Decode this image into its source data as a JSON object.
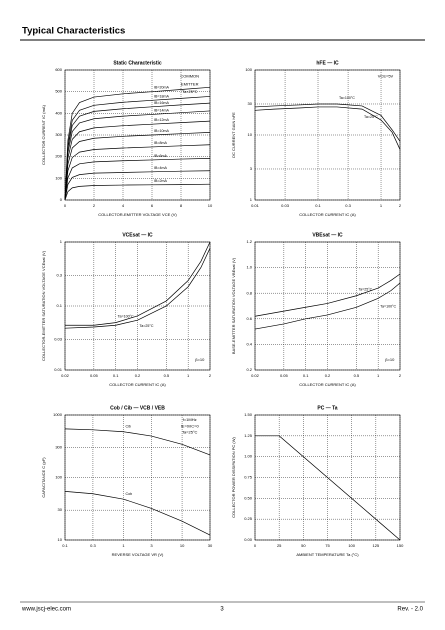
{
  "header": {
    "title": "Typical Characteristics"
  },
  "chart_data": [
    {
      "type": "line",
      "title": "Static Characteristic",
      "xlabel": "COLLECTOR-EMITTER VOLTAGE  VCE  (V)",
      "ylabel": "COLLECTOR CURRENT  IC  (mA)",
      "annotations": [
        "COMMON",
        "EMITTER",
        "Ta=25°C"
      ],
      "x": [
        0,
        0.2,
        0.5,
        1,
        2,
        4,
        6,
        8,
        10
      ],
      "xlim": [
        0,
        10
      ],
      "xticks": [
        0,
        2,
        4,
        6,
        8,
        10
      ],
      "ylim": [
        0,
        600
      ],
      "yticks": [
        0,
        100,
        200,
        300,
        400,
        500,
        600
      ],
      "grid": true,
      "series": [
        {
          "name": "IB=20mA",
          "color": "#000000",
          "values": [
            0,
            275,
            400,
            450,
            475,
            490,
            500,
            510,
            520
          ]
        },
        {
          "name": "IB=18mA",
          "color": "#000000",
          "values": [
            0,
            253,
            368,
            414,
            437,
            451,
            460,
            469,
            478
          ]
        },
        {
          "name": "IB=16mA",
          "color": "#000000",
          "values": [
            0,
            237,
            344,
            387,
            409,
            421,
            430,
            439,
            447
          ]
        },
        {
          "name": "IB=14mA",
          "color": "#000000",
          "values": [
            0,
            217,
            316,
            356,
            375,
            387,
            395,
            403,
            411
          ]
        },
        {
          "name": "IB=12mA",
          "color": "#000000",
          "values": [
            0,
            193,
            280,
            315,
            333,
            343,
            350,
            357,
            364
          ]
        },
        {
          "name": "IB=10mA",
          "color": "#000000",
          "values": [
            0,
            165,
            240,
            270,
            285,
            294,
            300,
            306,
            312
          ]
        },
        {
          "name": "IB=8mA",
          "color": "#000000",
          "values": [
            0,
            135,
            196,
            221,
            233,
            240,
            245,
            250,
            255
          ]
        },
        {
          "name": "IB=6mA",
          "color": "#000000",
          "values": [
            0,
            102,
            148,
            167,
            176,
            181,
            185,
            189,
            192
          ]
        },
        {
          "name": "IB=4mA",
          "color": "#000000",
          "values": [
            0,
            72,
            104,
            117,
            124,
            127,
            130,
            133,
            135
          ]
        },
        {
          "name": "IB=2mA",
          "color": "#000000",
          "values": [
            0,
            39,
            56,
            63,
            67,
            69,
            70,
            71,
            73
          ]
        }
      ]
    },
    {
      "type": "line",
      "title": "hFE — IC",
      "xlabel": "COLLECTOR CURRENT  IC  (A)",
      "ylabel": "DC CURRENT GAIN  hFE",
      "annotations": [
        "VCE=5V"
      ],
      "xscale": "log",
      "yscale": "log",
      "x": [
        0.01,
        0.02,
        0.05,
        0.1,
        0.2,
        0.5,
        1,
        1.5,
        2
      ],
      "xlim": [
        0.01,
        2
      ],
      "xticks": [
        0.01,
        0.03,
        0.1,
        0.3,
        1,
        2
      ],
      "ylim": [
        1,
        100
      ],
      "yticks": [
        1,
        3,
        10,
        30,
        100
      ],
      "grid": true,
      "series": [
        {
          "name": "Ta=100°C",
          "color": "#000000",
          "values": [
            27,
            28,
            29,
            30,
            30,
            28,
            20,
            12,
            8
          ]
        },
        {
          "name": "Ta=25°C",
          "color": "#000000",
          "values": [
            24,
            25,
            26,
            27,
            27,
            25,
            17,
            11,
            6
          ]
        }
      ]
    },
    {
      "type": "line",
      "title": "VCEsat — IC",
      "xlabel": "COLLECTOR CURRENT  IC  (A)",
      "ylabel": "COLLECTOR-EMITTER SATURATION VOLTAGE  VCEsat  (V)",
      "annotations": [
        "β=10"
      ],
      "xscale": "log",
      "yscale": "log",
      "x": [
        0.02,
        0.05,
        0.1,
        0.2,
        0.5,
        1,
        1.5,
        2
      ],
      "xlim": [
        0.02,
        2
      ],
      "xticks": [
        0.02,
        0.05,
        0.1,
        0.2,
        0.5,
        1,
        2
      ],
      "ylim": [
        0.01,
        1
      ],
      "yticks": [
        0.01,
        0.03,
        0.1,
        0.3,
        1
      ],
      "grid": true,
      "series": [
        {
          "name": "Ta=100°C",
          "color": "#000000",
          "values": [
            0.05,
            0.05,
            0.055,
            0.07,
            0.12,
            0.25,
            0.5,
            1
          ]
        },
        {
          "name": "Ta=25°C",
          "color": "#000000",
          "values": [
            0.045,
            0.047,
            0.05,
            0.06,
            0.1,
            0.2,
            0.4,
            0.8
          ]
        }
      ]
    },
    {
      "type": "line",
      "title": "VBEsat — IC",
      "xlabel": "COLLECTOR CURRENT  IC  (A)",
      "ylabel": "BASE-EMITTER SATURATION VOLTAGE  VBEsat  (V)",
      "annotations": [
        "β=10"
      ],
      "xscale": "log",
      "x": [
        0.02,
        0.05,
        0.1,
        0.2,
        0.5,
        1,
        1.5,
        2
      ],
      "xlim": [
        0.02,
        2
      ],
      "xticks": [
        0.02,
        0.05,
        0.1,
        0.2,
        0.5,
        1,
        2
      ],
      "ylim": [
        0.2,
        1.2
      ],
      "yticks": [
        0.2,
        0.4,
        0.6,
        0.8,
        {
          "value": 1,
          "label": "1.0"
        },
        1.2
      ],
      "grid": true,
      "series": [
        {
          "name": "Ta=25°C",
          "color": "#000000",
          "values": [
            0.62,
            0.66,
            0.69,
            0.72,
            0.78,
            0.84,
            0.9,
            0.95
          ]
        },
        {
          "name": "Ta=100°C",
          "color": "#000000",
          "values": [
            0.52,
            0.56,
            0.6,
            0.63,
            0.69,
            0.76,
            0.82,
            0.88
          ]
        }
      ]
    },
    {
      "type": "line",
      "title": "Cob / Cib — VCB / VEB",
      "xlabel": "REVERSE VOLTAGE  VR  (V)",
      "ylabel": "CAPACITANCE  C  (pF)",
      "annotations": [
        "f=1MHz",
        "IE=0/IC=0",
        "Ta=25°C"
      ],
      "xscale": "log",
      "yscale": "log",
      "x": [
        0.1,
        0.3,
        1,
        3,
        10,
        30
      ],
      "xlim": [
        0.1,
        30
      ],
      "xticks": [
        0.1,
        0.3,
        1,
        3,
        10,
        30
      ],
      "ylim": [
        10,
        1000
      ],
      "yticks": [
        10,
        30,
        100,
        300,
        1000
      ],
      "grid": true,
      "series": [
        {
          "name": "Cib",
          "color": "#000000",
          "values": [
            600,
            580,
            540,
            460,
            340,
            230
          ]
        },
        {
          "name": "Cob",
          "color": "#000000",
          "values": [
            60,
            55,
            45,
            32,
            20,
            12
          ]
        }
      ]
    },
    {
      "type": "line",
      "title": "PC — Ta",
      "xlabel": "AMBIENT TEMPERATURE  Ta  (°C)",
      "ylabel": "COLLECTOR POWER DISSIPATION  PC  (W)",
      "x": [
        0,
        25,
        150
      ],
      "xlim": [
        0,
        150
      ],
      "xticks": [
        0,
        25,
        50,
        75,
        100,
        125,
        150
      ],
      "ylim": [
        0,
        1.5
      ],
      "yticks": [
        {
          "value": 0,
          "label": "0.00"
        },
        0.25,
        {
          "value": 0.5,
          "label": "0.50"
        },
        0.75,
        {
          "value": 1,
          "label": "1.00"
        },
        1.25,
        {
          "value": 1.5,
          "label": "1.50"
        }
      ],
      "grid": true,
      "series": [
        {
          "color": "#000000",
          "values": [
            1.25,
            1.25,
            0
          ]
        }
      ]
    }
  ],
  "footer": {
    "website": "www.jscj-elec.com",
    "page": 3,
    "revision": "Rev. - 2.0"
  }
}
